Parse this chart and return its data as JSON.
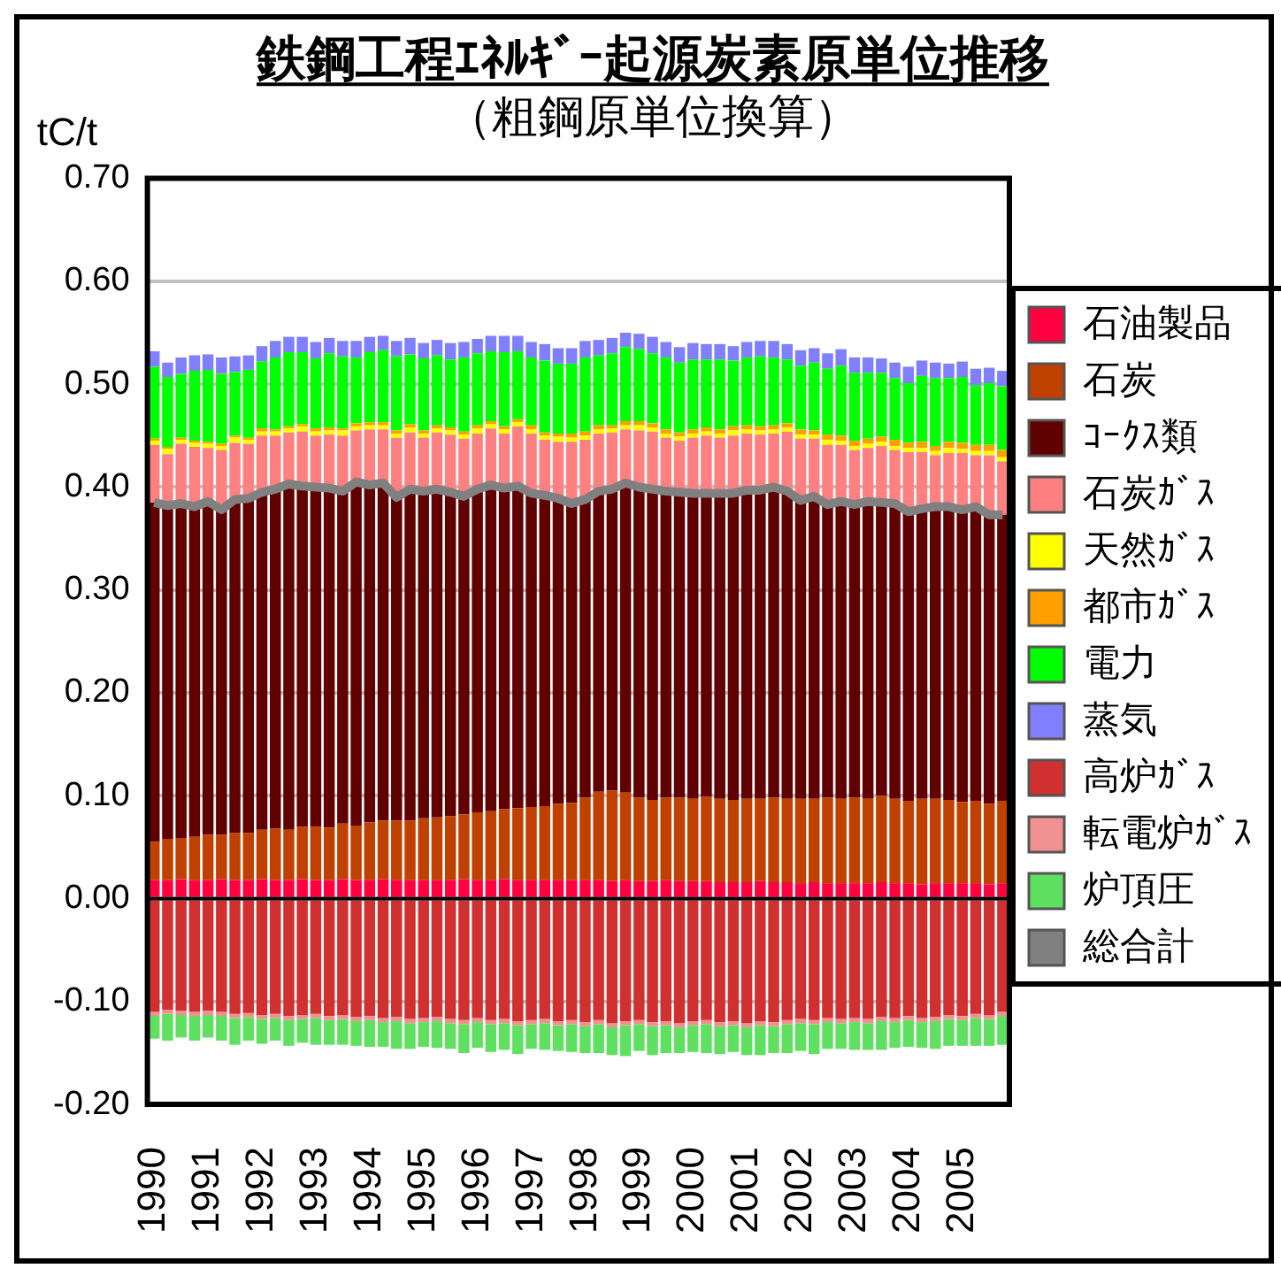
{
  "chart_data": {
    "type": "bar",
    "title": "鉄鋼工程ｴﾈﾙｷﾞｰ起源炭素原単位推移",
    "subtitle": "（粗鋼原単位換算）",
    "ylabel": "tC/t",
    "stacked": true,
    "grid": "y",
    "legend": "right",
    "ylim": [
      -0.2,
      0.7
    ],
    "yticks": [
      {
        "value": -0.2,
        "label": "-0.20"
      },
      {
        "value": -0.1,
        "label": "-0.10"
      },
      {
        "value": 0,
        "label": "0.00"
      },
      {
        "value": 0.1,
        "label": "0.10"
      },
      {
        "value": 0.2,
        "label": "0.20"
      },
      {
        "value": 0.3,
        "label": "0.30"
      },
      {
        "value": 0.4,
        "label": "0.40"
      },
      {
        "value": 0.5,
        "label": "0.50"
      },
      {
        "value": 0.6,
        "label": "0.60"
      },
      {
        "value": 0.7,
        "label": "0.70"
      }
    ],
    "categories": [
      "1990",
      null,
      null,
      null,
      "1991",
      null,
      null,
      null,
      "1992",
      null,
      null,
      null,
      "1993",
      null,
      null,
      null,
      "1994",
      null,
      null,
      null,
      "1995",
      null,
      null,
      null,
      "1996",
      null,
      null,
      null,
      "1997",
      null,
      null,
      null,
      "1998",
      null,
      null,
      null,
      "1999",
      null,
      null,
      null,
      "2000",
      null,
      null,
      null,
      "2001",
      null,
      null,
      null,
      "2002",
      null,
      null,
      null,
      "2003",
      null,
      null,
      null,
      "2004",
      null,
      null,
      null,
      "2005",
      null,
      null,
      null
    ],
    "series": [
      {
        "name": "石油製品",
        "color": "#ff0040",
        "values": [
          0.018,
          0.018,
          0.019,
          0.018,
          0.018,
          0.019,
          0.018,
          0.018,
          0.019,
          0.018,
          0.018,
          0.019,
          0.018,
          0.018,
          0.019,
          0.018,
          0.018,
          0.019,
          0.018,
          0.018,
          0.018,
          0.018,
          0.018,
          0.019,
          0.018,
          0.018,
          0.019,
          0.018,
          0.018,
          0.018,
          0.018,
          0.018,
          0.018,
          0.018,
          0.017,
          0.018,
          0.017,
          0.017,
          0.018,
          0.017,
          0.017,
          0.017,
          0.016,
          0.016,
          0.016,
          0.017,
          0.016,
          0.016,
          0.015,
          0.016,
          0.015,
          0.015,
          0.015,
          0.015,
          0.016,
          0.015,
          0.015,
          0.014,
          0.015,
          0.015,
          0.015,
          0.015,
          0.014,
          0.015
        ]
      },
      {
        "name": "石炭",
        "color": "#c04000",
        "values": [
          0.037,
          0.04,
          0.04,
          0.042,
          0.044,
          0.043,
          0.046,
          0.046,
          0.048,
          0.05,
          0.049,
          0.051,
          0.052,
          0.051,
          0.054,
          0.053,
          0.056,
          0.057,
          0.058,
          0.058,
          0.06,
          0.061,
          0.062,
          0.063,
          0.066,
          0.067,
          0.068,
          0.07,
          0.071,
          0.072,
          0.074,
          0.075,
          0.08,
          0.086,
          0.088,
          0.085,
          0.081,
          0.079,
          0.08,
          0.081,
          0.08,
          0.082,
          0.081,
          0.08,
          0.081,
          0.08,
          0.082,
          0.081,
          0.082,
          0.081,
          0.083,
          0.082,
          0.083,
          0.082,
          0.084,
          0.082,
          0.08,
          0.083,
          0.082,
          0.081,
          0.079,
          0.08,
          0.078,
          0.08
        ]
      },
      {
        "name": "ｺｰｸｽ類",
        "color": "#600000",
        "values": [
          0.33,
          0.324,
          0.325,
          0.321,
          0.324,
          0.316,
          0.324,
          0.325,
          0.328,
          0.33,
          0.336,
          0.331,
          0.33,
          0.33,
          0.323,
          0.334,
          0.328,
          0.328,
          0.314,
          0.322,
          0.318,
          0.319,
          0.315,
          0.309,
          0.314,
          0.317,
          0.312,
          0.313,
          0.305,
          0.302,
          0.297,
          0.291,
          0.29,
          0.292,
          0.293,
          0.301,
          0.302,
          0.302,
          0.298,
          0.297,
          0.297,
          0.295,
          0.297,
          0.298,
          0.3,
          0.3,
          0.302,
          0.299,
          0.29,
          0.294,
          0.285,
          0.289,
          0.285,
          0.289,
          0.285,
          0.287,
          0.281,
          0.282,
          0.284,
          0.285,
          0.284,
          0.286,
          0.281,
          0.278
        ]
      },
      {
        "name": "石炭ｶﾞｽ",
        "color": "#ff8080",
        "values": [
          0.056,
          0.05,
          0.058,
          0.058,
          0.052,
          0.058,
          0.055,
          0.053,
          0.055,
          0.052,
          0.05,
          0.053,
          0.05,
          0.052,
          0.054,
          0.05,
          0.054,
          0.052,
          0.058,
          0.055,
          0.052,
          0.055,
          0.056,
          0.056,
          0.054,
          0.055,
          0.053,
          0.058,
          0.058,
          0.054,
          0.055,
          0.06,
          0.058,
          0.056,
          0.055,
          0.052,
          0.055,
          0.056,
          0.052,
          0.05,
          0.054,
          0.056,
          0.054,
          0.056,
          0.055,
          0.054,
          0.052,
          0.058,
          0.06,
          0.056,
          0.058,
          0.055,
          0.053,
          0.052,
          0.055,
          0.052,
          0.058,
          0.055,
          0.05,
          0.052,
          0.055,
          0.05,
          0.058,
          0.052
        ]
      },
      {
        "name": "天然ｶﾞｽ",
        "color": "#ffff00",
        "values": [
          0.004,
          0.005,
          0.004,
          0.004,
          0.004,
          0.004,
          0.005,
          0.004,
          0.004,
          0.004,
          0.004,
          0.005,
          0.004,
          0.004,
          0.005,
          0.004,
          0.004,
          0.004,
          0.004,
          0.005,
          0.004,
          0.004,
          0.004,
          0.004,
          0.005,
          0.004,
          0.004,
          0.004,
          0.004,
          0.004,
          0.005,
          0.004,
          0.004,
          0.004,
          0.004,
          0.004,
          0.005,
          0.004,
          0.004,
          0.004,
          0.004,
          0.004,
          0.004,
          0.005,
          0.004,
          0.004,
          0.004,
          0.004,
          0.004,
          0.004,
          0.005,
          0.004,
          0.004,
          0.004,
          0.004,
          0.004,
          0.004,
          0.004,
          0.004,
          0.005,
          0.004,
          0.004,
          0.004,
          0.004
        ]
      },
      {
        "name": "都市ｶﾞｽ",
        "color": "#ffa000",
        "values": [
          0.002,
          0.002,
          0.002,
          0.002,
          0.002,
          0.002,
          0.002,
          0.002,
          0.003,
          0.002,
          0.002,
          0.002,
          0.003,
          0.003,
          0.002,
          0.003,
          0.003,
          0.003,
          0.003,
          0.003,
          0.003,
          0.003,
          0.003,
          0.003,
          0.003,
          0.003,
          0.003,
          0.003,
          0.004,
          0.003,
          0.003,
          0.004,
          0.004,
          0.004,
          0.003,
          0.004,
          0.004,
          0.004,
          0.004,
          0.004,
          0.004,
          0.004,
          0.004,
          0.004,
          0.004,
          0.004,
          0.004,
          0.004,
          0.005,
          0.004,
          0.005,
          0.005,
          0.005,
          0.005,
          0.005,
          0.006,
          0.005,
          0.006,
          0.005,
          0.006,
          0.006,
          0.006,
          0.006,
          0.007
        ]
      },
      {
        "name": "電力",
        "color": "#00ff00",
        "values": [
          0.07,
          0.068,
          0.062,
          0.068,
          0.07,
          0.068,
          0.062,
          0.066,
          0.065,
          0.07,
          0.072,
          0.07,
          0.068,
          0.072,
          0.07,
          0.064,
          0.068,
          0.07,
          0.072,
          0.068,
          0.07,
          0.068,
          0.066,
          0.072,
          0.07,
          0.068,
          0.072,
          0.066,
          0.066,
          0.07,
          0.068,
          0.068,
          0.072,
          0.068,
          0.07,
          0.072,
          0.07,
          0.068,
          0.07,
          0.068,
          0.068,
          0.066,
          0.068,
          0.064,
          0.066,
          0.068,
          0.066,
          0.062,
          0.062,
          0.066,
          0.064,
          0.068,
          0.066,
          0.064,
          0.062,
          0.06,
          0.058,
          0.064,
          0.066,
          0.062,
          0.064,
          0.058,
          0.06,
          0.062
        ]
      },
      {
        "name": "蒸気",
        "color": "#8080ff",
        "values": [
          0.015,
          0.014,
          0.016,
          0.015,
          0.015,
          0.016,
          0.015,
          0.014,
          0.015,
          0.016,
          0.015,
          0.015,
          0.016,
          0.015,
          0.015,
          0.016,
          0.015,
          0.014,
          0.015,
          0.016,
          0.015,
          0.015,
          0.016,
          0.015,
          0.014,
          0.015,
          0.016,
          0.015,
          0.015,
          0.016,
          0.015,
          0.015,
          0.016,
          0.015,
          0.015,
          0.014,
          0.015,
          0.016,
          0.015,
          0.015,
          0.016,
          0.015,
          0.015,
          0.014,
          0.015,
          0.015,
          0.016,
          0.015,
          0.015,
          0.014,
          0.015,
          0.016,
          0.015,
          0.015,
          0.014,
          0.015,
          0.016,
          0.015,
          0.015,
          0.014,
          0.015,
          0.016,
          0.015,
          0.015
        ]
      },
      {
        "name": "高炉ｶﾞｽ",
        "color": "#d03030",
        "values": [
          -0.11,
          -0.108,
          -0.109,
          -0.11,
          -0.109,
          -0.11,
          -0.112,
          -0.111,
          -0.113,
          -0.112,
          -0.114,
          -0.113,
          -0.112,
          -0.114,
          -0.113,
          -0.115,
          -0.114,
          -0.116,
          -0.115,
          -0.117,
          -0.116,
          -0.115,
          -0.117,
          -0.118,
          -0.116,
          -0.118,
          -0.117,
          -0.119,
          -0.118,
          -0.117,
          -0.119,
          -0.118,
          -0.12,
          -0.118,
          -0.121,
          -0.119,
          -0.118,
          -0.12,
          -0.119,
          -0.121,
          -0.119,
          -0.118,
          -0.12,
          -0.119,
          -0.121,
          -0.119,
          -0.12,
          -0.118,
          -0.117,
          -0.118,
          -0.116,
          -0.117,
          -0.116,
          -0.117,
          -0.115,
          -0.116,
          -0.114,
          -0.116,
          -0.115,
          -0.113,
          -0.114,
          -0.112,
          -0.113,
          -0.11
        ]
      },
      {
        "name": "転電炉ｶﾞｽ",
        "color": "#f09090",
        "values": [
          -0.004,
          -0.004,
          -0.004,
          -0.004,
          -0.004,
          -0.004,
          -0.004,
          -0.004,
          -0.004,
          -0.004,
          -0.004,
          -0.004,
          -0.004,
          -0.004,
          -0.004,
          -0.004,
          -0.004,
          -0.004,
          -0.004,
          -0.004,
          -0.004,
          -0.004,
          -0.004,
          -0.004,
          -0.004,
          -0.004,
          -0.004,
          -0.004,
          -0.004,
          -0.004,
          -0.004,
          -0.004,
          -0.004,
          -0.004,
          -0.004,
          -0.004,
          -0.004,
          -0.004,
          -0.004,
          -0.004,
          -0.004,
          -0.004,
          -0.004,
          -0.004,
          -0.004,
          -0.004,
          -0.004,
          -0.004,
          -0.004,
          -0.004,
          -0.004,
          -0.004,
          -0.004,
          -0.004,
          -0.004,
          -0.004,
          -0.004,
          -0.004,
          -0.004,
          -0.004,
          -0.004,
          -0.004,
          -0.004,
          -0.004
        ]
      },
      {
        "name": "炉頂圧",
        "color": "#60e060",
        "values": [
          -0.022,
          -0.026,
          -0.022,
          -0.024,
          -0.022,
          -0.024,
          -0.026,
          -0.023,
          -0.024,
          -0.022,
          -0.025,
          -0.023,
          -0.026,
          -0.024,
          -0.025,
          -0.024,
          -0.026,
          -0.024,
          -0.027,
          -0.025,
          -0.024,
          -0.026,
          -0.025,
          -0.028,
          -0.025,
          -0.027,
          -0.026,
          -0.028,
          -0.024,
          -0.026,
          -0.025,
          -0.027,
          -0.026,
          -0.028,
          -0.027,
          -0.03,
          -0.026,
          -0.028,
          -0.027,
          -0.025,
          -0.026,
          -0.028,
          -0.027,
          -0.026,
          -0.027,
          -0.029,
          -0.026,
          -0.028,
          -0.027,
          -0.029,
          -0.026,
          -0.025,
          -0.027,
          -0.026,
          -0.028,
          -0.025,
          -0.026,
          -0.025,
          -0.027,
          -0.026,
          -0.025,
          -0.027,
          -0.026,
          -0.028
        ]
      },
      {
        "name": "総合計",
        "type": "line",
        "color": "#808080",
        "values": [
          0.385,
          0.382,
          0.384,
          0.381,
          0.386,
          0.378,
          0.388,
          0.389,
          0.395,
          0.398,
          0.403,
          0.401,
          0.4,
          0.399,
          0.396,
          0.405,
          0.402,
          0.404,
          0.39,
          0.398,
          0.396,
          0.398,
          0.395,
          0.391,
          0.398,
          0.402,
          0.399,
          0.401,
          0.394,
          0.392,
          0.389,
          0.384,
          0.388,
          0.396,
          0.398,
          0.404,
          0.4,
          0.398,
          0.396,
          0.395,
          0.394,
          0.394,
          0.394,
          0.394,
          0.397,
          0.397,
          0.4,
          0.396,
          0.387,
          0.391,
          0.383,
          0.386,
          0.383,
          0.386,
          0.385,
          0.384,
          0.376,
          0.379,
          0.381,
          0.381,
          0.378,
          0.381,
          0.373,
          0.373
        ]
      }
    ]
  }
}
